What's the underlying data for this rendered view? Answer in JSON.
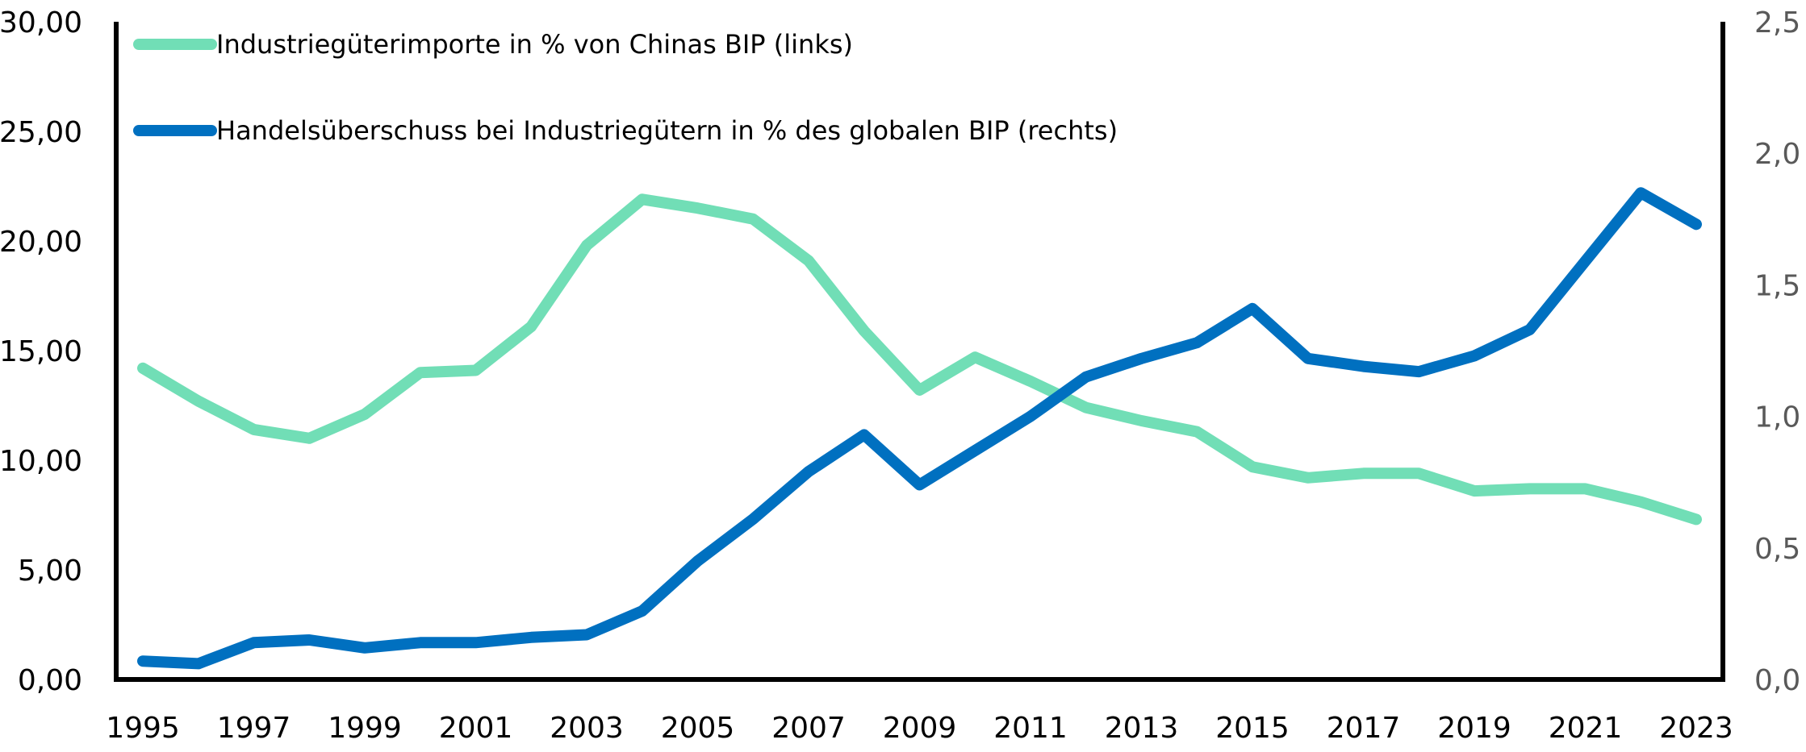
{
  "chart_data": {
    "type": "line",
    "title": "",
    "xlabel": "",
    "ylabel": "",
    "y2label": "",
    "x": [
      1995,
      1996,
      1997,
      1998,
      1999,
      2000,
      2001,
      2002,
      2003,
      2004,
      2005,
      2006,
      2007,
      2008,
      2009,
      2010,
      2011,
      2012,
      2013,
      2014,
      2015,
      2016,
      2017,
      2018,
      2019,
      2020,
      2021,
      2022,
      2023
    ],
    "x_tick_labels": [
      "1995",
      "1997",
      "1999",
      "2001",
      "2003",
      "2005",
      "2007",
      "2009",
      "2011",
      "2013",
      "2015",
      "2017",
      "2019",
      "2021",
      "2023"
    ],
    "ylim": [
      0,
      30
    ],
    "y_tick_labels": [
      "0,00",
      "5,00",
      "10,00",
      "15,00",
      "20,00",
      "25,00",
      "30,00"
    ],
    "y_ticks": [
      0,
      5,
      10,
      15,
      20,
      25,
      30
    ],
    "y2lim": [
      0,
      2.5
    ],
    "y2_tick_labels": [
      "0,0",
      "0,5",
      "1,0",
      "1,5",
      "2,0",
      "2,5"
    ],
    "y2_ticks": [
      0,
      0.5,
      1.0,
      1.5,
      2.0,
      2.5
    ],
    "grid": false,
    "legend_position": "top-left",
    "series": [
      {
        "name": "Industriegüterimporte in % von Chinas BIP (links)",
        "axis": "left",
        "color": "#71DEB6",
        "values": [
          14.2,
          12.7,
          11.4,
          11.0,
          12.1,
          14.0,
          14.1,
          16.1,
          19.8,
          21.9,
          21.5,
          21.0,
          19.1,
          15.9,
          13.2,
          14.7,
          13.6,
          12.4,
          11.8,
          11.3,
          9.7,
          9.2,
          9.4,
          9.4,
          8.6,
          8.7,
          8.7,
          8.1,
          7.3
        ]
      },
      {
        "name": "Handelsüberschuss bei Industriegütern in % des globalen BIP (rechts)",
        "axis": "right",
        "color": "#0070C0",
        "values": [
          0.07,
          0.06,
          0.14,
          0.15,
          0.12,
          0.14,
          0.14,
          0.16,
          0.17,
          0.26,
          0.45,
          0.61,
          0.79,
          0.93,
          0.74,
          0.87,
          1.0,
          1.15,
          1.22,
          1.28,
          1.41,
          1.22,
          1.19,
          1.17,
          1.23,
          1.33,
          1.59,
          1.85,
          1.73
        ]
      }
    ]
  }
}
